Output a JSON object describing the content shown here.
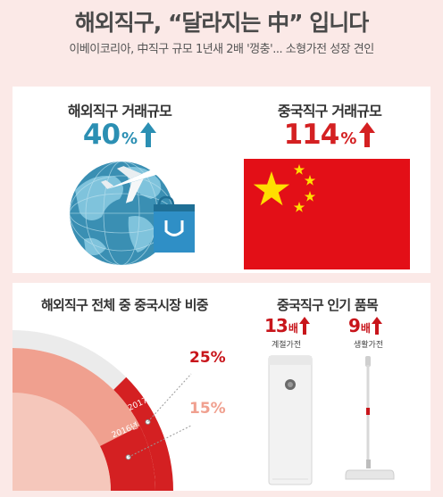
{
  "header": {
    "title": "해외직구, “달라지는 中” 입니다",
    "subtitle": "이베이코리아, 中직구 규모 1년새 2배 '껑충'... 소형가전 성장 견인"
  },
  "overseas": {
    "label": "해외직구 거래규모",
    "growth_value": "40",
    "growth_unit": "%"
  },
  "china": {
    "label": "중국직구 거래규모",
    "growth_value": "114",
    "growth_unit": "%"
  },
  "share_section": {
    "title": "해외직구 전체 중 중국시장 비중",
    "ring_2017_label": "2017년",
    "ring_2016_label": "2016년",
    "value_2017": "25%",
    "value_2016": "15%",
    "share_2017": 25,
    "share_2016": 15
  },
  "popular_section": {
    "title": "중국직구 인기 품목",
    "items": [
      {
        "ratio": "13",
        "unit": "배",
        "caption": "계절가전"
      },
      {
        "ratio": "9",
        "unit": "배",
        "caption": "생활가전"
      }
    ]
  },
  "colors": {
    "background": "#fbe9e7",
    "teal": "#2b8fb3",
    "red": "#d42022",
    "dark_red": "#c8151b",
    "salmon": "#f0a08f",
    "ring_grey": "#ebebeb",
    "flag_red": "#e30f17",
    "flag_star": "#ffde00"
  },
  "icons": {
    "globe": "globe-icon",
    "airplane": "airplane-icon",
    "shopping_bag": "shopping-bag-icon",
    "flag": "china-flag",
    "air_purifier": "air-purifier-icon",
    "stick_vacuum": "stick-vacuum-icon",
    "arrow_up": "arrow-up-icon"
  }
}
